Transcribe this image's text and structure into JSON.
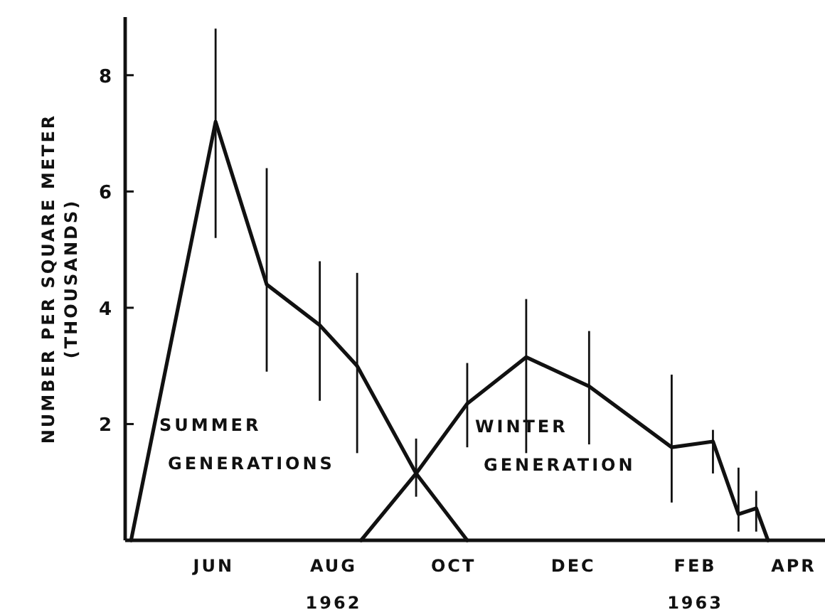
{
  "chart_data": {
    "type": "line",
    "ylabel": "NUMBER PER SQUARE METER\n(THOUSANDS)",
    "xlim": [
      "1962-05-01",
      "1963-04-22"
    ],
    "xticks": [
      {
        "value": "1962-06-15",
        "label": "JUN"
      },
      {
        "value": "1962-08-15",
        "label": "AUG\n1962"
      },
      {
        "value": "1962-10-15",
        "label": "OCT"
      },
      {
        "value": "1962-12-15",
        "label": "DEC"
      },
      {
        "value": "1963-02-15",
        "label": "FEB\n1963"
      },
      {
        "value": "1963-04-15",
        "label": "APR"
      }
    ],
    "ylim": [
      0,
      9
    ],
    "yticks": [
      2,
      4,
      6,
      8
    ],
    "grid": false,
    "marker": "none",
    "line_style": "solid",
    "series": [
      {
        "name": "SUMMER GENERATIONS",
        "color": "#111111",
        "x": [
          "1962-05-04",
          "1962-06-16",
          "1962-07-12",
          "1962-08-08",
          "1962-08-27",
          "1962-09-26",
          "1962-10-22"
        ],
        "values": [
          0,
          7.2,
          4.4,
          3.7,
          3.0,
          1.15,
          0
        ],
        "errors": [
          null,
          [
            5.2,
            8.8
          ],
          [
            2.9,
            6.4
          ],
          [
            2.4,
            4.8
          ],
          [
            1.5,
            4.6
          ],
          [
            0.75,
            1.75
          ],
          null
        ]
      },
      {
        "name": "WINTER GENERATION",
        "color": "#111111",
        "x": [
          "1962-08-29",
          "1962-09-26",
          "1962-10-22",
          "1962-11-21",
          "1962-12-23",
          "1963-02-03",
          "1963-02-24",
          "1963-03-09",
          "1963-03-18",
          "1963-03-24"
        ],
        "values": [
          0,
          1.15,
          2.35,
          3.15,
          2.65,
          1.6,
          1.7,
          0.45,
          0.55,
          0
        ],
        "errors": [
          null,
          null,
          [
            1.6,
            3.05
          ],
          [
            1.5,
            4.15
          ],
          [
            1.65,
            3.6
          ],
          [
            0.65,
            2.85
          ],
          [
            1.15,
            1.9
          ],
          [
            0.15,
            1.25
          ],
          [
            0.15,
            0.85
          ],
          null
        ]
      }
    ]
  }
}
